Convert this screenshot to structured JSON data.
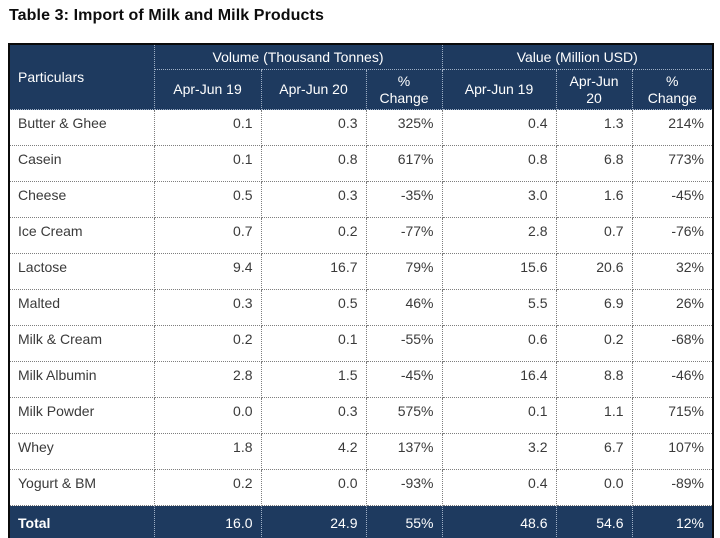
{
  "title": "Table 3: Import of Milk and Milk Products",
  "table": {
    "particulars_header": "Particulars",
    "group_headers": [
      "Volume (Thousand Tonnes)",
      "Value (Million USD)"
    ],
    "sub_headers": [
      "Apr-Jun 19",
      "Apr-Jun 20",
      "%\nChange",
      "Apr-Jun 19",
      "Apr-Jun\n20",
      "%\nChange"
    ],
    "rows": [
      {
        "particular": "Butter & Ghee",
        "values": [
          "0.1",
          "0.3",
          "325%",
          "0.4",
          "1.3",
          "214%"
        ]
      },
      {
        "particular": "Casein",
        "values": [
          "0.1",
          "0.8",
          "617%",
          "0.8",
          "6.8",
          "773%"
        ]
      },
      {
        "particular": "Cheese",
        "values": [
          "0.5",
          "0.3",
          "-35%",
          "3.0",
          "1.6",
          "-45%"
        ]
      },
      {
        "particular": "Ice Cream",
        "values": [
          "0.7",
          "0.2",
          "-77%",
          "2.8",
          "0.7",
          "-76%"
        ]
      },
      {
        "particular": "Lactose",
        "values": [
          "9.4",
          "16.7",
          "79%",
          "15.6",
          "20.6",
          "32%"
        ]
      },
      {
        "particular": "Malted",
        "values": [
          "0.3",
          "0.5",
          "46%",
          "5.5",
          "6.9",
          "26%"
        ]
      },
      {
        "particular": "Milk & Cream",
        "values": [
          "0.2",
          "0.1",
          "-55%",
          "0.6",
          "0.2",
          "-68%"
        ]
      },
      {
        "particular": "Milk Albumin",
        "values": [
          "2.8",
          "1.5",
          "-45%",
          "16.4",
          "8.8",
          "-46%"
        ]
      },
      {
        "particular": "Milk Powder",
        "values": [
          "0.0",
          "0.3",
          "575%",
          "0.1",
          "1.1",
          "715%"
        ]
      },
      {
        "particular": "Whey",
        "values": [
          "1.8",
          "4.2",
          "137%",
          "3.2",
          "6.7",
          "107%"
        ]
      },
      {
        "particular": "Yogurt & BM",
        "values": [
          "0.2",
          "0.0",
          "-93%",
          "0.4",
          "0.0",
          "-89%"
        ]
      }
    ],
    "total_row": {
      "label": "Total",
      "values": [
        "16.0",
        "24.9",
        "55%",
        "48.6",
        "54.6",
        "12%"
      ]
    }
  },
  "colors": {
    "header_bg": "#1e3a5f",
    "body_text": "#3a3a3a",
    "outer_border": "#0b0b0b"
  }
}
